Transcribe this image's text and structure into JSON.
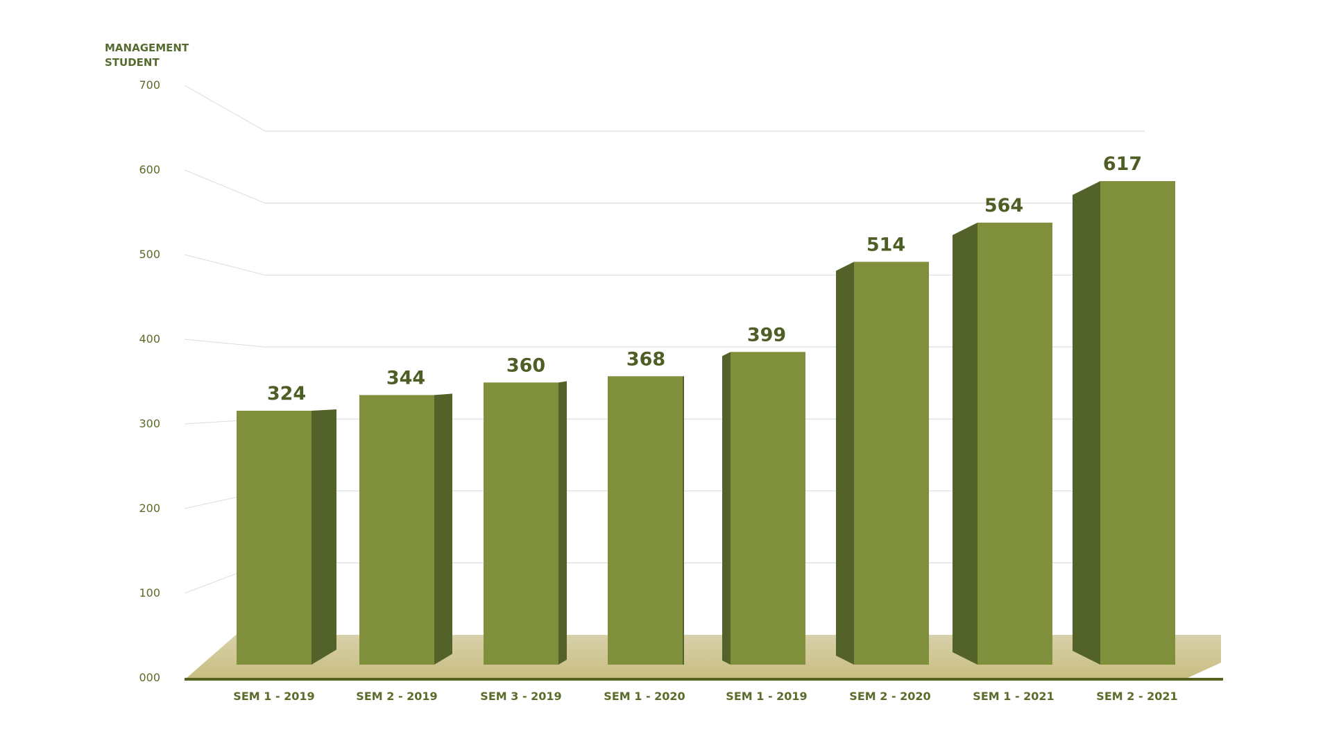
{
  "chart_data": {
    "type": "bar",
    "ylabel": "MANAGEMENT STUDENT",
    "ylabel_lines": [
      "MANAGEMENT",
      "STUDENT"
    ],
    "categories": [
      "SEM 1 - 2019",
      "SEM 2 - 2019",
      "SEM 3 - 2019",
      "SEM 1 - 2020",
      "SEM 1 - 2019",
      "SEM 2 - 2020",
      "SEM 1 - 2021",
      "SEM 2 - 2021"
    ],
    "values": [
      324,
      344,
      360,
      368,
      399,
      514,
      564,
      617
    ],
    "data_labels": [
      "324",
      "344",
      "360",
      "368",
      "399",
      "514",
      "564",
      "617"
    ],
    "yticks": [
      "000",
      "100",
      "200",
      "300",
      "400",
      "500",
      "600",
      "700"
    ],
    "ylim": [
      0,
      700
    ],
    "grid": true,
    "style": "3d-bar",
    "colors": {
      "bar_front": "#7f8f3c",
      "bar_side": "#536229",
      "floor_back": "#d8d1ab",
      "floor_front": "#c9bd80",
      "baseline": "#55611f",
      "grid": "#dcdde3",
      "text": "#5a6b2a"
    }
  }
}
